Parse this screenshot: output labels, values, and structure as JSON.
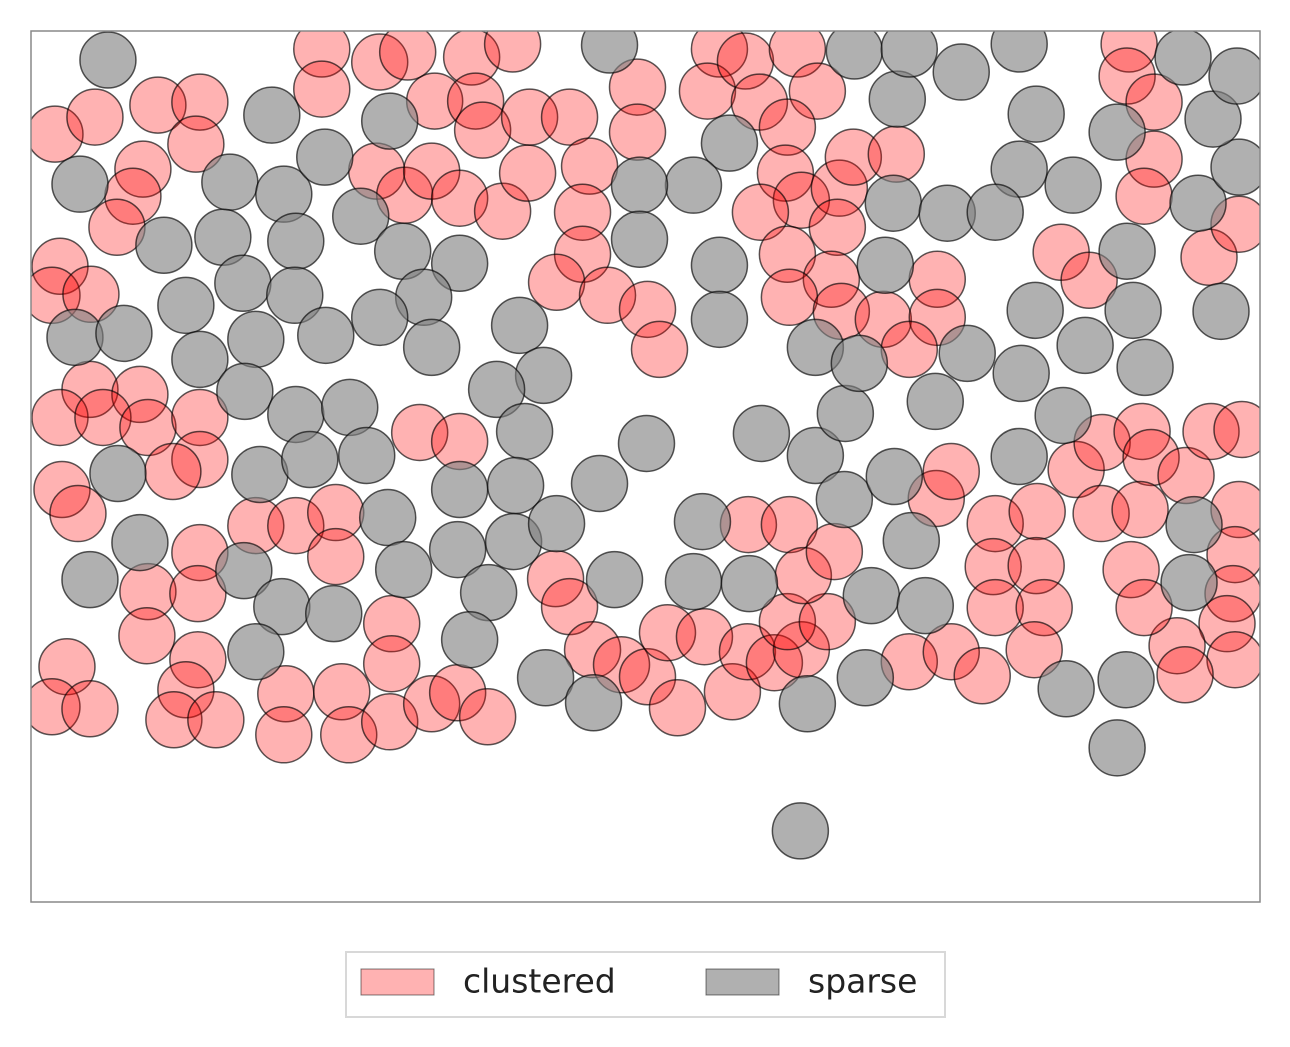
{
  "chart_data": {
    "type": "scatter",
    "xlim": [
      0,
      123
    ],
    "ylim": [
      0,
      87
    ],
    "legend": "lower center",
    "series": [
      {
        "name": "clustered",
        "color": "#ff00004d",
        "x": [
          2.4,
          6.4,
          12.7,
          16.9,
          16.5,
          11.2,
          10.2,
          8.6,
          2.9,
          2.1,
          6.0,
          29.1,
          29.1,
          34.9,
          37.7,
          44.1,
          48.2,
          40.4,
          44.5,
          45.2,
          49.9,
          53.9,
          34.6,
          37.4,
          40.1,
          42.9,
          47.2,
          49.7,
          55.9,
          55.2,
          55.2,
          52.6,
          57.7,
          61.7,
          62.9,
          60.7,
          60.7,
          68.9,
          67.7,
          71.5,
          72.9,
          76.7,
          78.7,
          75.7,
          75.5,
          77.1,
          80.9,
          82.3,
          86.6,
          73.0,
          75.7,
          80.7,
          80.1,
          75.9,
          81.1,
          85.3,
          90.7,
          90.7,
          87.9,
          109.9,
          109.7,
          112.4,
          112.4,
          111.4,
          103.1,
          105.9,
          117.9,
          120.9,
          5.9,
          10.9,
          2.9,
          7.2,
          11.7,
          16.9,
          16.9,
          14.2,
          3.1,
          4.7,
          22.5,
          26.5,
          30.5,
          30.5,
          38.9,
          42.9,
          16.9,
          11.7,
          16.7,
          11.6,
          3.6,
          16.7,
          15.5,
          14.3,
          18.5,
          2.1,
          5.9,
          25.5,
          25.3,
          31.1,
          31.8,
          35.9,
          36.1,
          36.1,
          40.1,
          42.7,
          45.7,
          52.5,
          53.9,
          56.2,
          59.1,
          61.7,
          64.7,
          63.7,
          67.4,
          70.2,
          71.7,
          71.8,
          75.9,
          74.4,
          77.1,
          75.7,
          79.7,
          77.3,
          80.4,
          87.9,
          92.1,
          95.2,
          90.6,
          92.1,
          96.5,
          96.3,
          96.5,
          100.7,
          100.6,
          101.4,
          100.4,
          104.6,
          107.2,
          107.1,
          111.2,
          112.1,
          111.0,
          115.6,
          118.1,
          121.2,
          120.9,
          120.5,
          120.3,
          119.7,
          120.5,
          114.7,
          115.5,
          110.1,
          111.4
        ],
        "values": [
          76.7,
          78.4,
          79.6,
          79.9,
          75.7,
          73.2,
          70.5,
          67.4,
          63.5,
          60.6,
          60.7,
          85.2,
          81.2,
          83.9,
          84.9,
          84.4,
          85.7,
          80.0,
          80.0,
          77.1,
          78.4,
          78.4,
          73.0,
          70.6,
          73.0,
          70.3,
          69.0,
          72.8,
          73.5,
          68.9,
          64.7,
          61.9,
          60.6,
          59.2,
          55.2,
          81.4,
          76.9,
          85.2,
          81.0,
          84.0,
          79.9,
          85.2,
          81.0,
          77.4,
          72.8,
          70.1,
          71.3,
          74.4,
          74.7,
          68.9,
          64.7,
          67.4,
          62.2,
          60.4,
          59.0,
          58.2,
          62.2,
          58.4,
          55.2,
          85.7,
          82.5,
          79.9,
          74.2,
          70.5,
          64.9,
          62.1,
          64.4,
          67.7,
          51.2,
          50.7,
          48.4,
          48.4,
          47.4,
          48.4,
          44.2,
          43.0,
          41.2,
          38.8,
          37.6,
          37.6,
          38.9,
          34.5,
          46.9,
          46.0,
          34.9,
          31.0,
          30.8,
          26.6,
          23.5,
          24.2,
          21.2,
          18.2,
          18.2,
          19.5,
          19.3,
          20.8,
          16.7,
          21.0,
          16.7,
          18.0,
          27.8,
          23.8,
          19.8,
          20.9,
          18.5,
          32.3,
          29.5,
          25.2,
          23.7,
          22.5,
          19.4,
          26.9,
          26.5,
          21.0,
          25.0,
          37.7,
          37.7,
          23.9,
          25.2,
          28.0,
          28.0,
          32.6,
          35.0,
          24.0,
          25.0,
          22.6,
          40.3,
          43.0,
          37.8,
          33.5,
          29.4,
          39.0,
          33.6,
          29.4,
          25.2,
          43.2,
          45.9,
          38.8,
          47.0,
          44.4,
          39.2,
          42.6,
          47.0,
          47.2,
          39.2,
          34.7,
          30.8,
          27.8,
          24.2,
          25.6,
          22.7,
          33.2,
          29.4
        ]
      },
      {
        "name": "sparse",
        "color": "#8080809e",
        "x": [
          7.7,
          4.9,
          19.9,
          25.3,
          24.1,
          29.4,
          35.9,
          33.0,
          19.2,
          13.3,
          26.5,
          37.2,
          42.9,
          21.2,
          26.4,
          15.5,
          39.3,
          34.9,
          4.4,
          9.3,
          16.9,
          22.5,
          29.5,
          40.1,
          48.9,
          51.3,
          46.6,
          21.4,
          26.5,
          31.9,
          49.4,
          22.9,
          27.9,
          33.6,
          42.9,
          48.5,
          8.7,
          10.9,
          21.3,
          25.1,
          30.3,
          22.5,
          5.9,
          35.7,
          37.3,
          42.7,
          48.3,
          45.8,
          43.9,
          52.6,
          56.9,
          58.4,
          61.6,
          51.5,
          56.3,
          66.3,
          71.9,
          67.2,
          73.1,
          78.5,
          81.5,
          81.4,
          86.4,
          88.1,
          77.7,
          84.1,
          83.5,
          89.5,
          78.5,
          82.9,
          90.5,
          93.7,
          99.1,
          103.3,
          98.9,
          105.5,
          111.5,
          100.5,
          110.3,
          119.1,
          109.7,
          104.3,
          98.9,
          116.8,
          120.9,
          108.7,
          118.3,
          120.7,
          115.3,
          100.6,
          93.1,
          98.9,
          86.7,
          86.3,
          91.7,
          96.5,
          85.5,
          68.9,
          68.9,
          69.9,
          66.3,
          60.9,
          60.9,
          57.9,
          82.4,
          87.9,
          116.4,
          115.9,
          103.6,
          109.6,
          108.7,
          77.0
        ],
        "values": [
          84.1,
          71.7,
          71.9,
          70.7,
          78.6,
          74.4,
          78.0,
          68.5,
          66.4,
          65.6,
          66.0,
          65.0,
          63.8,
          61.8,
          60.6,
          59.6,
          60.4,
          58.4,
          56.4,
          56.8,
          54.2,
          56.2,
          56.6,
          55.4,
          57.6,
          52.6,
          51.2,
          51.0,
          48.7,
          49.4,
          47.0,
          42.7,
          44.2,
          44.6,
          41.2,
          41.6,
          42.8,
          35.9,
          33.1,
          29.5,
          28.8,
          25.0,
          32.2,
          38.4,
          33.2,
          35.2,
          36.0,
          30.9,
          26.2,
          37.8,
          41.8,
          32.2,
          45.8,
          22.4,
          19.9,
          32.0,
          31.8,
          38.0,
          46.8,
          44.6,
          48.8,
          40.2,
          42.5,
          36.1,
          19.8,
          30.6,
          22.4,
          29.6,
          55.4,
          53.8,
          50.0,
          54.8,
          52.8,
          48.6,
          44.5,
          55.6,
          53.4,
          59.1,
          59.1,
          59.0,
          65.0,
          71.6,
          73.2,
          69.8,
          73.4,
          76.9,
          78.2,
          82.5,
          84.4,
          78.7,
          82.9,
          85.7,
          80.2,
          69.8,
          68.8,
          68.9,
          63.6,
          63.6,
          58.2,
          75.8,
          71.6,
          71.6,
          66.2,
          85.6,
          85.0,
          85.2,
          37.7,
          31.9,
          21.3,
          22.2,
          15.4,
          7.1
        ]
      }
    ]
  }
}
